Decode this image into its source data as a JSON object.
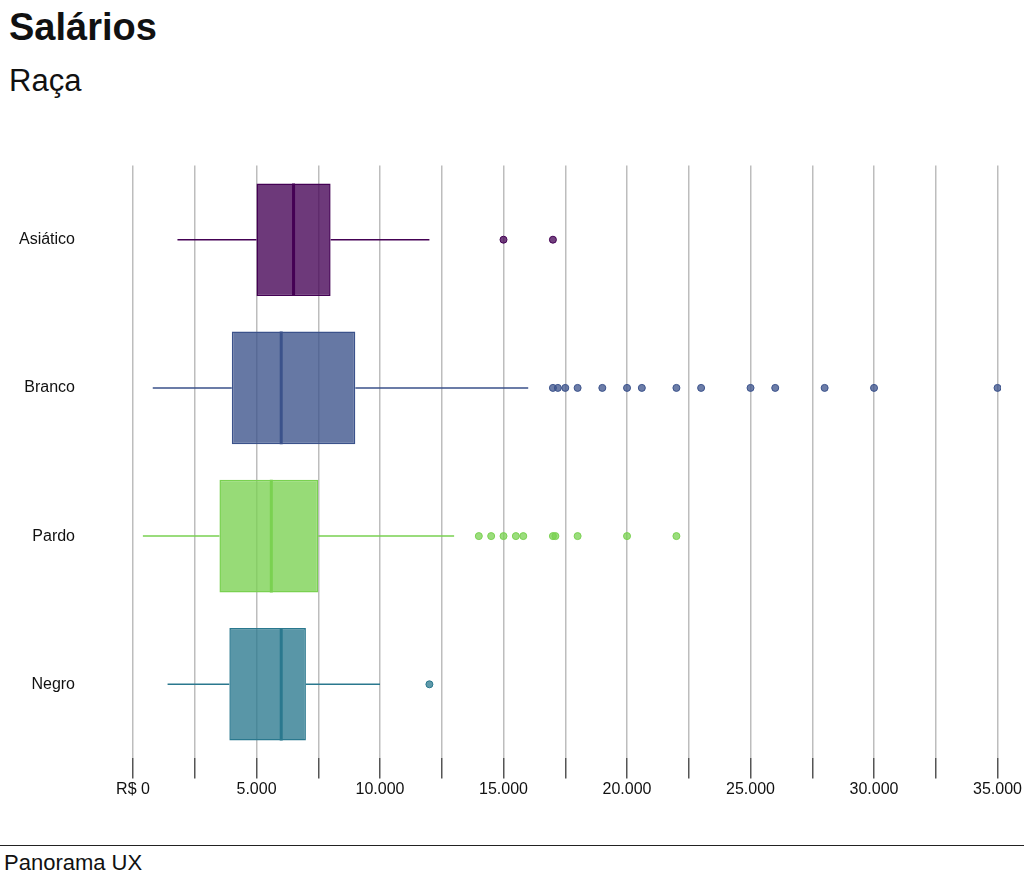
{
  "chart_data": {
    "type": "boxplot",
    "title": "Salários",
    "subtitle": "Raça",
    "footer": "Panorama UX",
    "orientation": "horizontal",
    "categories": [
      "Asiático",
      "Branco",
      "Pardo",
      "Negro"
    ],
    "colors": [
      "#440154",
      "#3b528b",
      "#7ad151",
      "#2a788e"
    ],
    "whisker_low": [
      1800,
      800,
      400,
      1400
    ],
    "q1": [
      5000,
      4000,
      3500,
      3900
    ],
    "median": [
      6500,
      6000,
      5600,
      6000
    ],
    "q3": [
      8000,
      9000,
      7500,
      7000
    ],
    "whisker_high": [
      12000,
      16000,
      13000,
      10000
    ],
    "outliers": [
      [
        15000,
        17000
      ],
      [
        17000,
        17200,
        17500,
        18000,
        19000,
        20000,
        20600,
        22000,
        23000,
        25000,
        26000,
        28000,
        30000,
        35000
      ],
      [
        14000,
        14500,
        15000,
        15500,
        15800,
        17000,
        17100,
        18000,
        20000,
        22000
      ],
      [
        12000
      ]
    ],
    "xlim": [
      0,
      35000
    ],
    "xticks": [
      {
        "value": 0,
        "label": "R$ 0"
      },
      {
        "value": 5000,
        "label": "5.000"
      },
      {
        "value": 10000,
        "label": "10.000"
      },
      {
        "value": 15000,
        "label": "15.000"
      },
      {
        "value": 20000,
        "label": "20.000"
      },
      {
        "value": 25000,
        "label": "25.000"
      },
      {
        "value": 30000,
        "label": "30.000"
      },
      {
        "value": 35000,
        "label": "35.000"
      }
    ],
    "grid": true
  }
}
